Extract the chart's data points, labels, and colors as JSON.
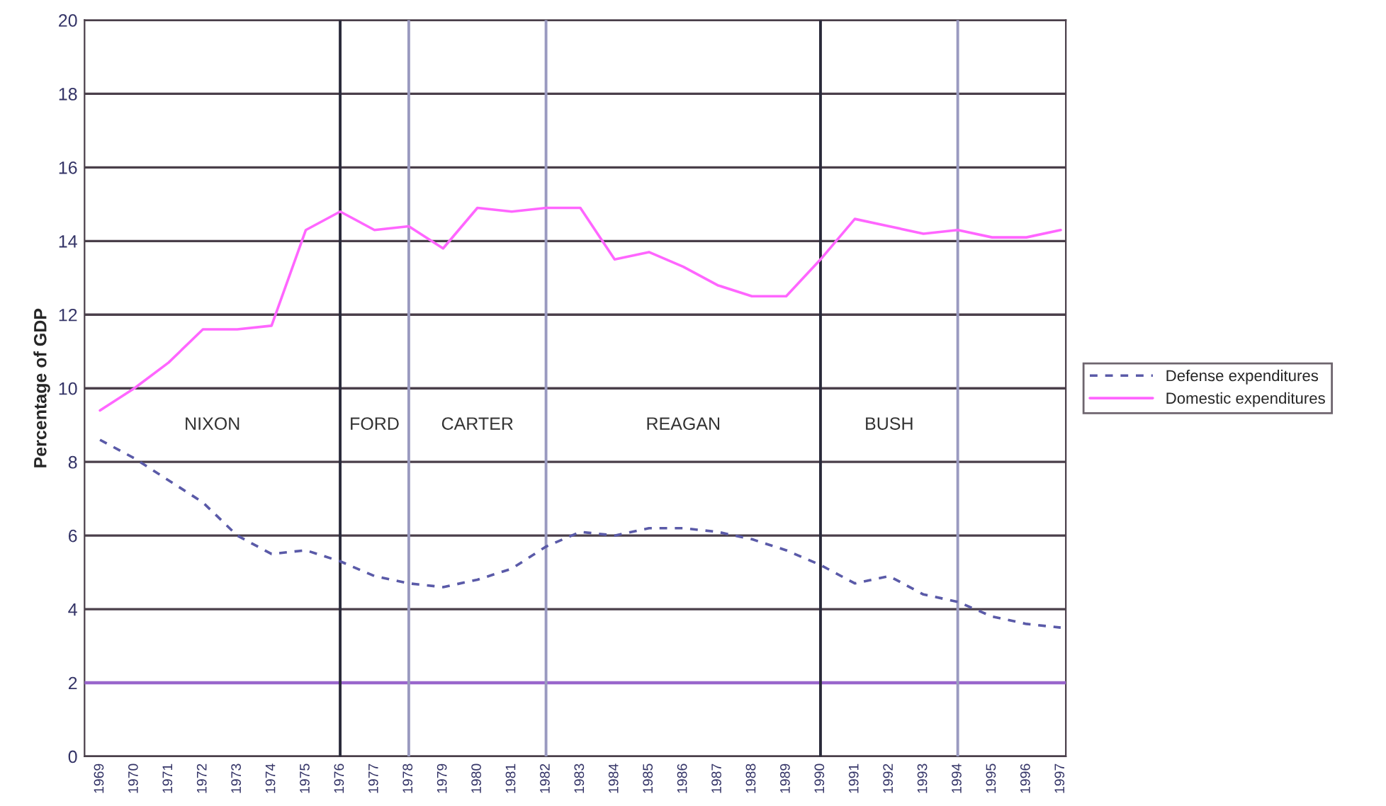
{
  "chart_data": {
    "type": "line",
    "ylabel": "Percentage of GDP",
    "categories": [
      "1969",
      "1970",
      "1971",
      "1972",
      "1973",
      "1974",
      "1975",
      "1976",
      "1977",
      "1978",
      "1979",
      "1980",
      "1981",
      "1982",
      "1983",
      "1984",
      "1985",
      "1986",
      "1987",
      "1988",
      "1989",
      "1990",
      "1991",
      "1992",
      "1993",
      "1994",
      "1995",
      "1996",
      "1997"
    ],
    "series": [
      {
        "name": "Defense expenditures",
        "color": "#5a5aa8",
        "line_style": "dashed",
        "values": [
          8.6,
          8.1,
          7.5,
          6.9,
          6.0,
          5.5,
          5.6,
          5.3,
          4.9,
          4.7,
          4.6,
          4.8,
          5.1,
          5.7,
          6.1,
          6.0,
          6.2,
          6.2,
          6.1,
          5.9,
          5.6,
          5.2,
          4.7,
          4.9,
          4.4,
          4.2,
          3.8,
          3.6,
          3.5
        ]
      },
      {
        "name": "Domestic expenditures",
        "color": "#ff66ff",
        "line_style": "solid",
        "values": [
          9.4,
          10.0,
          10.7,
          11.6,
          11.6,
          11.7,
          14.3,
          14.8,
          14.3,
          14.4,
          13.8,
          14.9,
          14.8,
          14.9,
          14.9,
          13.5,
          13.7,
          13.3,
          12.8,
          12.5,
          12.5,
          13.5,
          14.6,
          14.4,
          14.2,
          14.3,
          14.1,
          14.1,
          14.3
        ]
      }
    ],
    "ylim": [
      0,
      20
    ],
    "yticks": [
      0,
      2,
      4,
      6,
      8,
      10,
      12,
      14,
      16,
      18,
      20
    ],
    "grid": "y",
    "legend": "right",
    "marker": "none",
    "ref_lines": [
      {
        "axis": "y",
        "value": 2,
        "color": "#9966cc"
      },
      {
        "axis": "x",
        "value": "1976",
        "color": "#2a2a3a"
      },
      {
        "axis": "x",
        "value": "1978",
        "color": "#9a9ac0"
      },
      {
        "axis": "x",
        "value": "1982",
        "color": "#9a9ac0"
      },
      {
        "axis": "x",
        "value": "1990",
        "color": "#2a2a3a"
      },
      {
        "axis": "x",
        "value": "1994",
        "color": "#9a9ac0"
      }
    ],
    "annotations": [
      "NIXON",
      "FORD",
      "CARTER",
      "REAGAN",
      "BUSH"
    ]
  }
}
